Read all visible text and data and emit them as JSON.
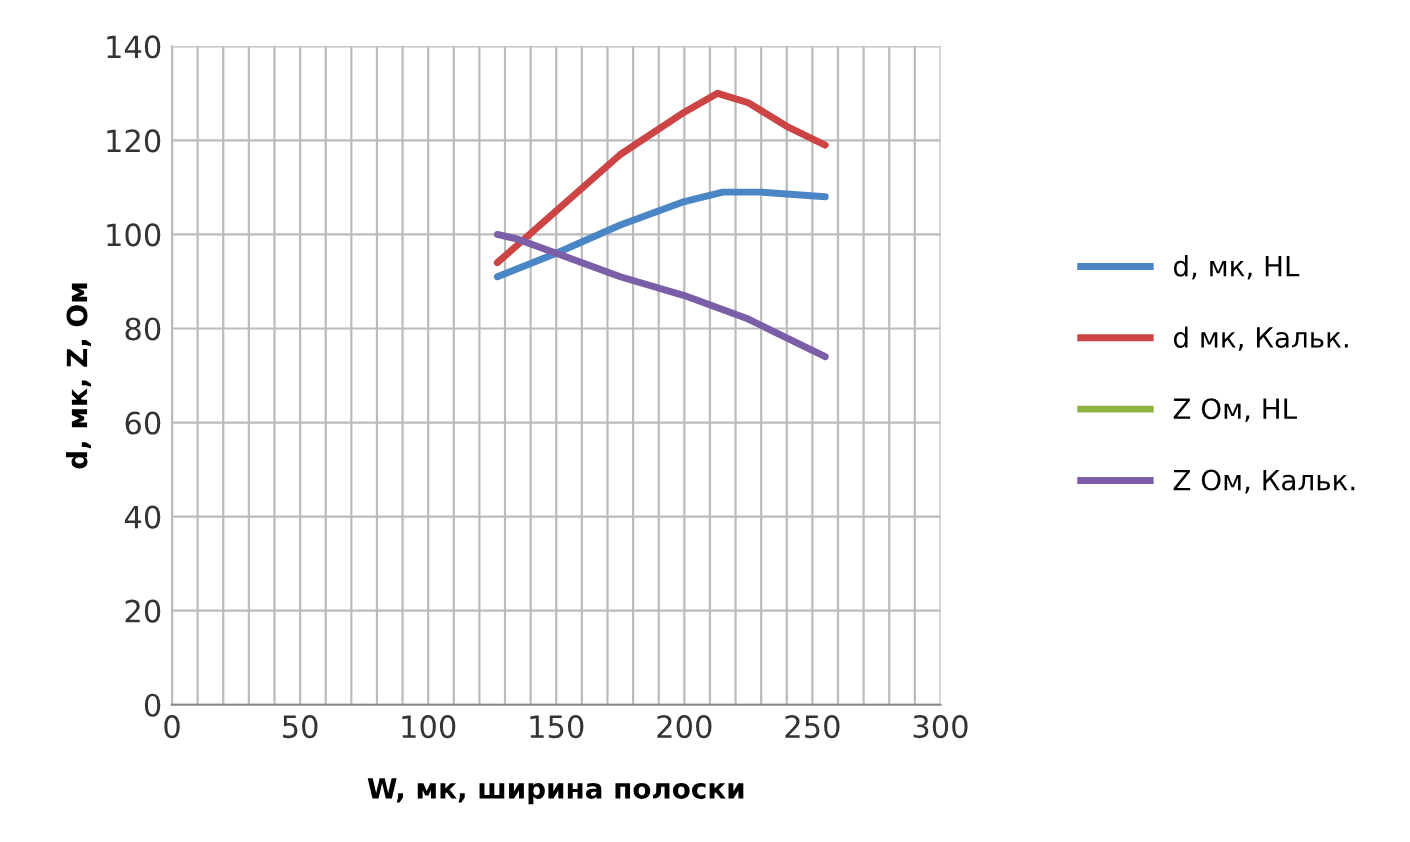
{
  "chart_data": {
    "type": "line",
    "xlabel": "W, мк, ширина полоски",
    "ylabel": "d, мк, Z, Ом",
    "xlim": [
      0,
      300
    ],
    "ylim": [
      0,
      140
    ],
    "xticks": [
      0,
      {
        "value": 10,
        "label": null
      },
      {
        "value": 20,
        "label": null
      },
      {
        "value": 30,
        "label": null
      },
      {
        "value": 40,
        "label": null
      },
      50,
      {
        "value": 60,
        "label": null
      },
      {
        "value": 70,
        "label": null
      },
      {
        "value": 80,
        "label": null
      },
      {
        "value": 90,
        "label": null
      },
      100,
      {
        "value": 110,
        "label": null
      },
      {
        "value": 120,
        "label": null
      },
      {
        "value": 130,
        "label": null
      },
      {
        "value": 140,
        "label": null
      },
      150,
      {
        "value": 160,
        "label": null
      },
      {
        "value": 170,
        "label": null
      },
      {
        "value": 180,
        "label": null
      },
      {
        "value": 190,
        "label": null
      },
      200,
      {
        "value": 210,
        "label": null
      },
      {
        "value": 220,
        "label": null
      },
      {
        "value": 230,
        "label": null
      },
      {
        "value": 240,
        "label": null
      },
      250,
      {
        "value": 260,
        "label": null
      },
      {
        "value": 270,
        "label": null
      },
      {
        "value": 280,
        "label": null
      },
      {
        "value": 290,
        "label": null
      },
      300
    ],
    "yticks": [
      0,
      20,
      40,
      60,
      80,
      100,
      120,
      140
    ],
    "grid": true,
    "legend": "right",
    "marker": "none",
    "line_style": "solid",
    "series": [
      {
        "name": "d, мк, HL",
        "color": "#4a86c5",
        "x": [
          127,
          150,
          175,
          200,
          215,
          230,
          255
        ],
        "values": [
          91,
          96,
          102,
          107,
          109,
          109,
          108
        ]
      },
      {
        "name": "d мк, Кальк.",
        "color": "#cc4444",
        "x": [
          127,
          150,
          175,
          200,
          213,
          225,
          240,
          255
        ],
        "values": [
          94,
          105,
          117,
          126,
          130,
          128,
          123,
          119
        ]
      },
      {
        "name": "Z Ом, HL",
        "color": "#8db43e"
      },
      {
        "name": "Z Ом, Кальк.",
        "color": "#7b5ea7",
        "x": [
          127,
          135,
          150,
          175,
          200,
          225,
          255
        ],
        "values": [
          100,
          99,
          96,
          91,
          87,
          82,
          74
        ]
      }
    ]
  }
}
